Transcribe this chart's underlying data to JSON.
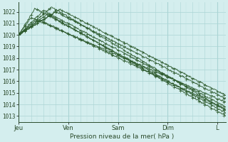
{
  "title": "Pression niveau de la mer( hPa )",
  "ylabel_ticks": [
    1013,
    1014,
    1015,
    1016,
    1017,
    1018,
    1019,
    1020,
    1021,
    1022
  ],
  "ylim": [
    1012.5,
    1022.8
  ],
  "xlim": [
    0,
    100
  ],
  "xtick_positions": [
    0,
    24,
    48,
    72,
    96
  ],
  "xtick_labels": [
    "Jeu",
    "Ven",
    "Sam",
    "Dim",
    "L"
  ],
  "background_color": "#d4eeee",
  "grid_color_major": "#aad4d4",
  "grid_color_minor": "#c0e4e4",
  "line_color": "#2d5a2d",
  "figsize": [
    3.2,
    2.0
  ],
  "dpi": 100
}
